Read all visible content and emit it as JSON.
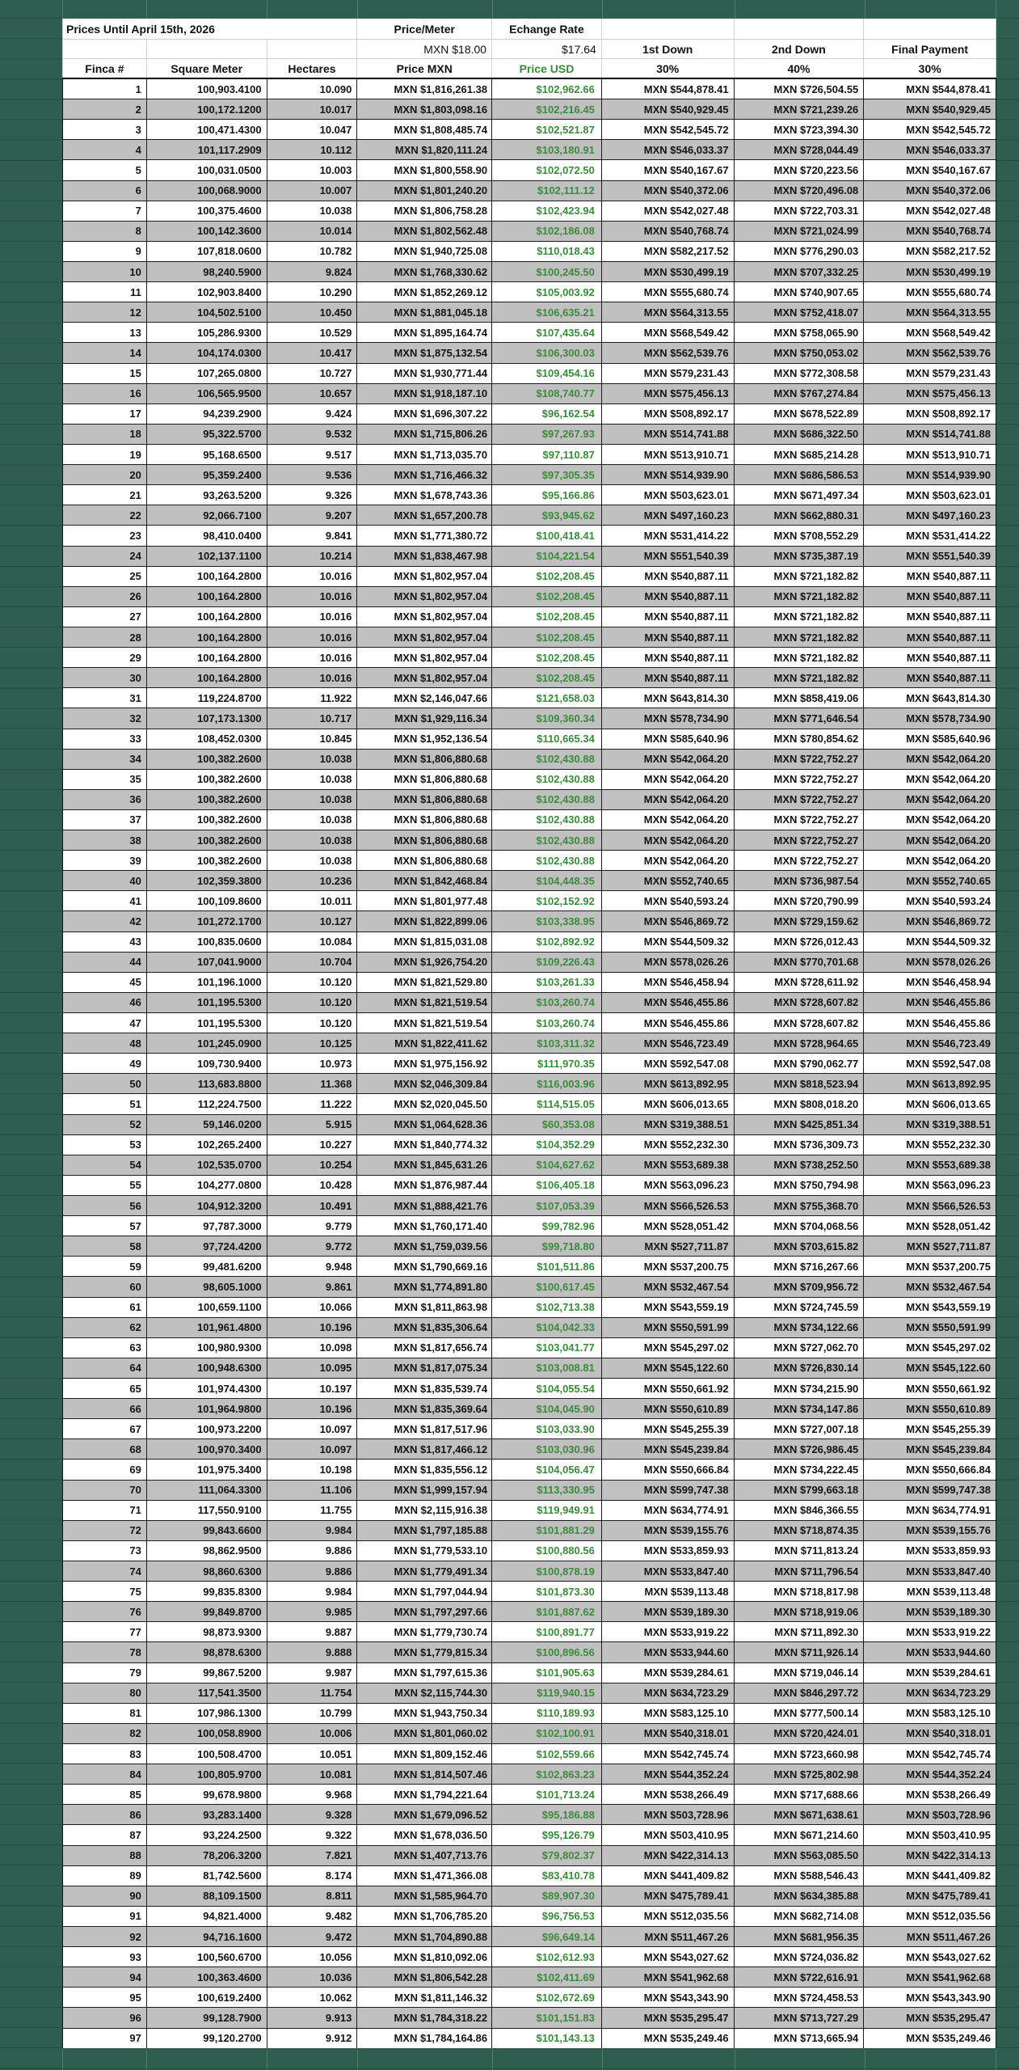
{
  "header": {
    "title": "Prices Until April 15th, 2026",
    "price_meter_label": "Price/Meter",
    "price_meter_value": "MXN $18.00",
    "exchange_rate_label": "Echange Rate",
    "exchange_rate_value": "$17.64",
    "down1_label": "1st Down",
    "down2_label": "2nd Down",
    "final_label": "Final Payment",
    "col_finca": "Finca #",
    "col_sqm": "Square Meter",
    "col_hectares": "Hectares",
    "col_price_mxn": "Price MXN",
    "col_price_usd": "Price USD",
    "down1_pct": "30%",
    "down2_pct": "40%",
    "final_pct": "30%"
  },
  "colors": {
    "background_green": "#2e5e50",
    "zebra_gray": "#c0c0c0",
    "usd_text_green": "#3b8a3b"
  },
  "rows": [
    [
      "1",
      "100,903.4100",
      "10.090",
      "MXN $1,816,261.38",
      "$102,962.66",
      "MXN $544,878.41",
      "MXN $726,504.55",
      "MXN $544,878.41"
    ],
    [
      "2",
      "100,172.1200",
      "10.017",
      "MXN $1,803,098.16",
      "$102,216.45",
      "MXN $540,929.45",
      "MXN $721,239.26",
      "MXN $540,929.45"
    ],
    [
      "3",
      "100,471.4300",
      "10.047",
      "MXN $1,808,485.74",
      "$102,521.87",
      "MXN $542,545.72",
      "MXN $723,394.30",
      "MXN $542,545.72"
    ],
    [
      "4",
      "101,117.2909",
      "10.112",
      "MXN $1,820,111.24",
      "$103,180.91",
      "MXN $546,033.37",
      "MXN $728,044.49",
      "MXN $546,033.37"
    ],
    [
      "5",
      "100,031.0500",
      "10.003",
      "MXN $1,800,558.90",
      "$102,072.50",
      "MXN $540,167.67",
      "MXN $720,223.56",
      "MXN $540,167.67"
    ],
    [
      "6",
      "100,068.9000",
      "10.007",
      "MXN $1,801,240.20",
      "$102,111.12",
      "MXN $540,372.06",
      "MXN $720,496.08",
      "MXN $540,372.06"
    ],
    [
      "7",
      "100,375.4600",
      "10.038",
      "MXN $1,806,758.28",
      "$102,423.94",
      "MXN $542,027.48",
      "MXN $722,703.31",
      "MXN $542,027.48"
    ],
    [
      "8",
      "100,142.3600",
      "10.014",
      "MXN $1,802,562.48",
      "$102,186.08",
      "MXN $540,768.74",
      "MXN $721,024.99",
      "MXN $540,768.74"
    ],
    [
      "9",
      "107,818.0600",
      "10.782",
      "MXN $1,940,725.08",
      "$110,018.43",
      "MXN $582,217.52",
      "MXN $776,290.03",
      "MXN $582,217.52"
    ],
    [
      "10",
      "98,240.5900",
      "9.824",
      "MXN $1,768,330.62",
      "$100,245.50",
      "MXN $530,499.19",
      "MXN $707,332.25",
      "MXN $530,499.19"
    ],
    [
      "11",
      "102,903.8400",
      "10.290",
      "MXN $1,852,269.12",
      "$105,003.92",
      "MXN $555,680.74",
      "MXN $740,907.65",
      "MXN $555,680.74"
    ],
    [
      "12",
      "104,502.5100",
      "10.450",
      "MXN $1,881,045.18",
      "$106,635.21",
      "MXN $564,313.55",
      "MXN $752,418.07",
      "MXN $564,313.55"
    ],
    [
      "13",
      "105,286.9300",
      "10.529",
      "MXN $1,895,164.74",
      "$107,435.64",
      "MXN $568,549.42",
      "MXN $758,065.90",
      "MXN $568,549.42"
    ],
    [
      "14",
      "104,174.0300",
      "10.417",
      "MXN $1,875,132.54",
      "$106,300.03",
      "MXN $562,539.76",
      "MXN $750,053.02",
      "MXN $562,539.76"
    ],
    [
      "15",
      "107,265.0800",
      "10.727",
      "MXN $1,930,771.44",
      "$109,454.16",
      "MXN $579,231.43",
      "MXN $772,308.58",
      "MXN $579,231.43"
    ],
    [
      "16",
      "106,565.9500",
      "10.657",
      "MXN $1,918,187.10",
      "$108,740.77",
      "MXN $575,456.13",
      "MXN $767,274.84",
      "MXN $575,456.13"
    ],
    [
      "17",
      "94,239.2900",
      "9.424",
      "MXN $1,696,307.22",
      "$96,162.54",
      "MXN $508,892.17",
      "MXN $678,522.89",
      "MXN $508,892.17"
    ],
    [
      "18",
      "95,322.5700",
      "9.532",
      "MXN $1,715,806.26",
      "$97,267.93",
      "MXN $514,741.88",
      "MXN $686,322.50",
      "MXN $514,741.88"
    ],
    [
      "19",
      "95,168.6500",
      "9.517",
      "MXN $1,713,035.70",
      "$97,110.87",
      "MXN $513,910.71",
      "MXN $685,214.28",
      "MXN $513,910.71"
    ],
    [
      "20",
      "95,359.2400",
      "9.536",
      "MXN $1,716,466.32",
      "$97,305.35",
      "MXN $514,939.90",
      "MXN $686,586.53",
      "MXN $514,939.90"
    ],
    [
      "21",
      "93,263.5200",
      "9.326",
      "MXN $1,678,743.36",
      "$95,166.86",
      "MXN $503,623.01",
      "MXN $671,497.34",
      "MXN $503,623.01"
    ],
    [
      "22",
      "92,066.7100",
      "9.207",
      "MXN $1,657,200.78",
      "$93,945.62",
      "MXN $497,160.23",
      "MXN $662,880.31",
      "MXN $497,160.23"
    ],
    [
      "23",
      "98,410.0400",
      "9.841",
      "MXN $1,771,380.72",
      "$100,418.41",
      "MXN $531,414.22",
      "MXN $708,552.29",
      "MXN $531,414.22"
    ],
    [
      "24",
      "102,137.1100",
      "10.214",
      "MXN $1,838,467.98",
      "$104,221.54",
      "MXN $551,540.39",
      "MXN $735,387.19",
      "MXN $551,540.39"
    ],
    [
      "25",
      "100,164.2800",
      "10.016",
      "MXN $1,802,957.04",
      "$102,208.45",
      "MXN $540,887.11",
      "MXN $721,182.82",
      "MXN $540,887.11"
    ],
    [
      "26",
      "100,164.2800",
      "10.016",
      "MXN $1,802,957.04",
      "$102,208.45",
      "MXN $540,887.11",
      "MXN $721,182.82",
      "MXN $540,887.11"
    ],
    [
      "27",
      "100,164.2800",
      "10.016",
      "MXN $1,802,957.04",
      "$102,208.45",
      "MXN $540,887.11",
      "MXN $721,182.82",
      "MXN $540,887.11"
    ],
    [
      "28",
      "100,164.2800",
      "10.016",
      "MXN $1,802,957.04",
      "$102,208.45",
      "MXN $540,887.11",
      "MXN $721,182.82",
      "MXN $540,887.11"
    ],
    [
      "29",
      "100,164.2800",
      "10.016",
      "MXN $1,802,957.04",
      "$102,208.45",
      "MXN $540,887.11",
      "MXN $721,182.82",
      "MXN $540,887.11"
    ],
    [
      "30",
      "100,164.2800",
      "10.016",
      "MXN $1,802,957.04",
      "$102,208.45",
      "MXN $540,887.11",
      "MXN $721,182.82",
      "MXN $540,887.11"
    ],
    [
      "31",
      "119,224.8700",
      "11.922",
      "MXN $2,146,047.66",
      "$121,658.03",
      "MXN $643,814.30",
      "MXN $858,419.06",
      "MXN $643,814.30"
    ],
    [
      "32",
      "107,173.1300",
      "10.717",
      "MXN $1,929,116.34",
      "$109,360.34",
      "MXN $578,734.90",
      "MXN $771,646.54",
      "MXN $578,734.90"
    ],
    [
      "33",
      "108,452.0300",
      "10.845",
      "MXN $1,952,136.54",
      "$110,665.34",
      "MXN $585,640.96",
      "MXN $780,854.62",
      "MXN $585,640.96"
    ],
    [
      "34",
      "100,382.2600",
      "10.038",
      "MXN $1,806,880.68",
      "$102,430.88",
      "MXN $542,064.20",
      "MXN $722,752.27",
      "MXN $542,064.20"
    ],
    [
      "35",
      "100,382.2600",
      "10.038",
      "MXN $1,806,880.68",
      "$102,430.88",
      "MXN $542,064.20",
      "MXN $722,752.27",
      "MXN $542,064.20"
    ],
    [
      "36",
      "100,382.2600",
      "10.038",
      "MXN $1,806,880.68",
      "$102,430.88",
      "MXN $542,064.20",
      "MXN $722,752.27",
      "MXN $542,064.20"
    ],
    [
      "37",
      "100,382.2600",
      "10.038",
      "MXN $1,806,880.68",
      "$102,430.88",
      "MXN $542,064.20",
      "MXN $722,752.27",
      "MXN $542,064.20"
    ],
    [
      "38",
      "100,382.2600",
      "10.038",
      "MXN $1,806,880.68",
      "$102,430.88",
      "MXN $542,064.20",
      "MXN $722,752.27",
      "MXN $542,064.20"
    ],
    [
      "39",
      "100,382.2600",
      "10.038",
      "MXN $1,806,880.68",
      "$102,430.88",
      "MXN $542,064.20",
      "MXN $722,752.27",
      "MXN $542,064.20"
    ],
    [
      "40",
      "102,359.3800",
      "10.236",
      "MXN $1,842,468.84",
      "$104,448.35",
      "MXN $552,740.65",
      "MXN $736,987.54",
      "MXN $552,740.65"
    ],
    [
      "41",
      "100,109.8600",
      "10.011",
      "MXN $1,801,977.48",
      "$102,152.92",
      "MXN $540,593.24",
      "MXN $720,790.99",
      "MXN $540,593.24"
    ],
    [
      "42",
      "101,272.1700",
      "10.127",
      "MXN $1,822,899.06",
      "$103,338.95",
      "MXN $546,869.72",
      "MXN $729,159.62",
      "MXN $546,869.72"
    ],
    [
      "43",
      "100,835.0600",
      "10.084",
      "MXN $1,815,031.08",
      "$102,892.92",
      "MXN $544,509.32",
      "MXN $726,012.43",
      "MXN $544,509.32"
    ],
    [
      "44",
      "107,041.9000",
      "10.704",
      "MXN $1,926,754.20",
      "$109,226.43",
      "MXN $578,026.26",
      "MXN $770,701.68",
      "MXN $578,026.26"
    ],
    [
      "45",
      "101,196.1000",
      "10.120",
      "MXN $1,821,529.80",
      "$103,261.33",
      "MXN $546,458.94",
      "MXN $728,611.92",
      "MXN $546,458.94"
    ],
    [
      "46",
      "101,195.5300",
      "10.120",
      "MXN $1,821,519.54",
      "$103,260.74",
      "MXN $546,455.86",
      "MXN $728,607.82",
      "MXN $546,455.86"
    ],
    [
      "47",
      "101,195.5300",
      "10.120",
      "MXN $1,821,519.54",
      "$103,260.74",
      "MXN $546,455.86",
      "MXN $728,607.82",
      "MXN $546,455.86"
    ],
    [
      "48",
      "101,245.0900",
      "10.125",
      "MXN $1,822,411.62",
      "$103,311.32",
      "MXN $546,723.49",
      "MXN $728,964.65",
      "MXN $546,723.49"
    ],
    [
      "49",
      "109,730.9400",
      "10.973",
      "MXN $1,975,156.92",
      "$111,970.35",
      "MXN $592,547.08",
      "MXN $790,062.77",
      "MXN $592,547.08"
    ],
    [
      "50",
      "113,683.8800",
      "11.368",
      "MXN $2,046,309.84",
      "$116,003.96",
      "MXN $613,892.95",
      "MXN $818,523.94",
      "MXN $613,892.95"
    ],
    [
      "51",
      "112,224.7500",
      "11.222",
      "MXN $2,020,045.50",
      "$114,515.05",
      "MXN $606,013.65",
      "MXN $808,018.20",
      "MXN $606,013.65"
    ],
    [
      "52",
      "59,146.0200",
      "5.915",
      "MXN $1,064,628.36",
      "$60,353.08",
      "MXN $319,388.51",
      "MXN $425,851.34",
      "MXN $319,388.51"
    ],
    [
      "53",
      "102,265.2400",
      "10.227",
      "MXN $1,840,774.32",
      "$104,352.29",
      "MXN $552,232.30",
      "MXN $736,309.73",
      "MXN $552,232.30"
    ],
    [
      "54",
      "102,535.0700",
      "10.254",
      "MXN $1,845,631.26",
      "$104,627.62",
      "MXN $553,689.38",
      "MXN $738,252.50",
      "MXN $553,689.38"
    ],
    [
      "55",
      "104,277.0800",
      "10.428",
      "MXN $1,876,987.44",
      "$106,405.18",
      "MXN $563,096.23",
      "MXN $750,794.98",
      "MXN $563,096.23"
    ],
    [
      "56",
      "104,912.3200",
      "10.491",
      "MXN $1,888,421.76",
      "$107,053.39",
      "MXN $566,526.53",
      "MXN $755,368.70",
      "MXN $566,526.53"
    ],
    [
      "57",
      "97,787.3000",
      "9.779",
      "MXN $1,760,171.40",
      "$99,782.96",
      "MXN $528,051.42",
      "MXN $704,068.56",
      "MXN $528,051.42"
    ],
    [
      "58",
      "97,724.4200",
      "9.772",
      "MXN $1,759,039.56",
      "$99,718.80",
      "MXN $527,711.87",
      "MXN $703,615.82",
      "MXN $527,711.87"
    ],
    [
      "59",
      "99,481.6200",
      "9.948",
      "MXN $1,790,669.16",
      "$101,511.86",
      "MXN $537,200.75",
      "MXN $716,267.66",
      "MXN $537,200.75"
    ],
    [
      "60",
      "98,605.1000",
      "9.861",
      "MXN $1,774,891.80",
      "$100,617.45",
      "MXN $532,467.54",
      "MXN $709,956.72",
      "MXN $532,467.54"
    ],
    [
      "61",
      "100,659.1100",
      "10.066",
      "MXN $1,811,863.98",
      "$102,713.38",
      "MXN $543,559.19",
      "MXN $724,745.59",
      "MXN $543,559.19"
    ],
    [
      "62",
      "101,961.4800",
      "10.196",
      "MXN $1,835,306.64",
      "$104,042.33",
      "MXN $550,591.99",
      "MXN $734,122.66",
      "MXN $550,591.99"
    ],
    [
      "63",
      "100,980.9300",
      "10.098",
      "MXN $1,817,656.74",
      "$103,041.77",
      "MXN $545,297.02",
      "MXN $727,062.70",
      "MXN $545,297.02"
    ],
    [
      "64",
      "100,948.6300",
      "10.095",
      "MXN $1,817,075.34",
      "$103,008.81",
      "MXN $545,122.60",
      "MXN $726,830.14",
      "MXN $545,122.60"
    ],
    [
      "65",
      "101,974.4300",
      "10.197",
      "MXN $1,835,539.74",
      "$104,055.54",
      "MXN $550,661.92",
      "MXN $734,215.90",
      "MXN $550,661.92"
    ],
    [
      "66",
      "101,964.9800",
      "10.196",
      "MXN $1,835,369.64",
      "$104,045.90",
      "MXN $550,610.89",
      "MXN $734,147.86",
      "MXN $550,610.89"
    ],
    [
      "67",
      "100,973.2200",
      "10.097",
      "MXN $1,817,517.96",
      "$103,033.90",
      "MXN $545,255.39",
      "MXN $727,007.18",
      "MXN $545,255.39"
    ],
    [
      "68",
      "100,970.3400",
      "10.097",
      "MXN $1,817,466.12",
      "$103,030.96",
      "MXN $545,239.84",
      "MXN $726,986.45",
      "MXN $545,239.84"
    ],
    [
      "69",
      "101,975.3400",
      "10.198",
      "MXN $1,835,556.12",
      "$104,056.47",
      "MXN $550,666.84",
      "MXN $734,222.45",
      "MXN $550,666.84"
    ],
    [
      "70",
      "111,064.3300",
      "11.106",
      "MXN $1,999,157.94",
      "$113,330.95",
      "MXN $599,747.38",
      "MXN $799,663.18",
      "MXN $599,747.38"
    ],
    [
      "71",
      "117,550.9100",
      "11.755",
      "MXN $2,115,916.38",
      "$119,949.91",
      "MXN $634,774.91",
      "MXN $846,366.55",
      "MXN $634,774.91"
    ],
    [
      "72",
      "99,843.6600",
      "9.984",
      "MXN $1,797,185.88",
      "$101,881.29",
      "MXN $539,155.76",
      "MXN $718,874.35",
      "MXN $539,155.76"
    ],
    [
      "73",
      "98,862.9500",
      "9.886",
      "MXN $1,779,533.10",
      "$100,880.56",
      "MXN $533,859.93",
      "MXN $711,813.24",
      "MXN $533,859.93"
    ],
    [
      "74",
      "98,860.6300",
      "9.886",
      "MXN $1,779,491.34",
      "$100,878.19",
      "MXN $533,847.40",
      "MXN $711,796.54",
      "MXN $533,847.40"
    ],
    [
      "75",
      "99,835.8300",
      "9.984",
      "MXN $1,797,044.94",
      "$101,873.30",
      "MXN $539,113.48",
      "MXN $718,817.98",
      "MXN $539,113.48"
    ],
    [
      "76",
      "99,849.8700",
      "9.985",
      "MXN $1,797,297.66",
      "$101,887.62",
      "MXN $539,189.30",
      "MXN $718,919.06",
      "MXN $539,189.30"
    ],
    [
      "77",
      "98,873.9300",
      "9.887",
      "MXN $1,779,730.74",
      "$100,891.77",
      "MXN $533,919.22",
      "MXN $711,892.30",
      "MXN $533,919.22"
    ],
    [
      "78",
      "98,878.6300",
      "9.888",
      "MXN $1,779,815.34",
      "$100,896.56",
      "MXN $533,944.60",
      "MXN $711,926.14",
      "MXN $533,944.60"
    ],
    [
      "79",
      "99,867.5200",
      "9.987",
      "MXN $1,797,615.36",
      "$101,905.63",
      "MXN $539,284.61",
      "MXN $719,046.14",
      "MXN $539,284.61"
    ],
    [
      "80",
      "117,541.3500",
      "11.754",
      "MXN $2,115,744.30",
      "$119,940.15",
      "MXN $634,723.29",
      "MXN $846,297.72",
      "MXN $634,723.29"
    ],
    [
      "81",
      "107,986.1300",
      "10.799",
      "MXN $1,943,750.34",
      "$110,189.93",
      "MXN $583,125.10",
      "MXN $777,500.14",
      "MXN $583,125.10"
    ],
    [
      "82",
      "100,058.8900",
      "10.006",
      "MXN $1,801,060.02",
      "$102,100.91",
      "MXN $540,318.01",
      "MXN $720,424.01",
      "MXN $540,318.01"
    ],
    [
      "83",
      "100,508.4700",
      "10.051",
      "MXN $1,809,152.46",
      "$102,559.66",
      "MXN $542,745.74",
      "MXN $723,660.98",
      "MXN $542,745.74"
    ],
    [
      "84",
      "100,805.9700",
      "10.081",
      "MXN $1,814,507.46",
      "$102,863.23",
      "MXN $544,352.24",
      "MXN $725,802.98",
      "MXN $544,352.24"
    ],
    [
      "85",
      "99,678.9800",
      "9.968",
      "MXN $1,794,221.64",
      "$101,713.24",
      "MXN $538,266.49",
      "MXN $717,688.66",
      "MXN $538,266.49"
    ],
    [
      "86",
      "93,283.1400",
      "9.328",
      "MXN $1,679,096.52",
      "$95,186.88",
      "MXN $503,728.96",
      "MXN $671,638.61",
      "MXN $503,728.96"
    ],
    [
      "87",
      "93,224.2500",
      "9.322",
      "MXN $1,678,036.50",
      "$95,126.79",
      "MXN $503,410.95",
      "MXN $671,214.60",
      "MXN $503,410.95"
    ],
    [
      "88",
      "78,206.3200",
      "7.821",
      "MXN $1,407,713.76",
      "$79,802.37",
      "MXN $422,314.13",
      "MXN $563,085.50",
      "MXN $422,314.13"
    ],
    [
      "89",
      "81,742.5600",
      "8.174",
      "MXN $1,471,366.08",
      "$83,410.78",
      "MXN $441,409.82",
      "MXN $588,546.43",
      "MXN $441,409.82"
    ],
    [
      "90",
      "88,109.1500",
      "8.811",
      "MXN $1,585,964.70",
      "$89,907.30",
      "MXN $475,789.41",
      "MXN $634,385.88",
      "MXN $475,789.41"
    ],
    [
      "91",
      "94,821.4000",
      "9.482",
      "MXN $1,706,785.20",
      "$96,756.53",
      "MXN $512,035.56",
      "MXN $682,714.08",
      "MXN $512,035.56"
    ],
    [
      "92",
      "94,716.1600",
      "9.472",
      "MXN $1,704,890.88",
      "$96,649.14",
      "MXN $511,467.26",
      "MXN $681,956.35",
      "MXN $511,467.26"
    ],
    [
      "93",
      "100,560.6700",
      "10.056",
      "MXN $1,810,092.06",
      "$102,612.93",
      "MXN $543,027.62",
      "MXN $724,036.82",
      "MXN $543,027.62"
    ],
    [
      "94",
      "100,363.4600",
      "10.036",
      "MXN $1,806,542.28",
      "$102,411.69",
      "MXN $541,962.68",
      "MXN $722,616.91",
      "MXN $541,962.68"
    ],
    [
      "95",
      "100,619.2400",
      "10.062",
      "MXN $1,811,146.32",
      "$102,672.69",
      "MXN $543,343.90",
      "MXN $724,458.53",
      "MXN $543,343.90"
    ],
    [
      "96",
      "99,128.7900",
      "9.913",
      "MXN $1,784,318.22",
      "$101,151.83",
      "MXN $535,295.47",
      "MXN $713,727.29",
      "MXN $535,295.47"
    ],
    [
      "97",
      "99,120.2700",
      "9.912",
      "MXN $1,784,164.86",
      "$101,143.13",
      "MXN $535,249.46",
      "MXN $713,665.94",
      "MXN $535,249.46"
    ]
  ]
}
